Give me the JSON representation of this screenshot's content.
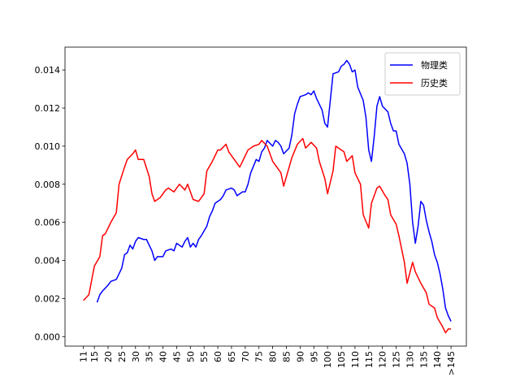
{
  "chart_data": {
    "type": "line",
    "xlim": [
      4.3,
      150.6
    ],
    "ylim": [
      -0.0005,
      0.0152
    ],
    "xticks": [
      11,
      15,
      20,
      25,
      30,
      35,
      40,
      45,
      50,
      55,
      60,
      65,
      70,
      75,
      80,
      85,
      90,
      95,
      100,
      105,
      110,
      115,
      120,
      125,
      130,
      135,
      140,
      {
        "value": 145,
        "label": ">145"
      }
    ],
    "yticks": [
      {
        "value": 0,
        "label": "0.000"
      },
      {
        "value": 0.002,
        "label": "0.002"
      },
      {
        "value": 0.004,
        "label": "0.004"
      },
      {
        "value": 0.006,
        "label": "0.006"
      },
      {
        "value": 0.008,
        "label": "0.008"
      },
      {
        "value": 0.01,
        "label": "0.010"
      },
      {
        "value": 0.012,
        "label": "0.012"
      },
      {
        "value": 0.014,
        "label": "0.014"
      }
    ],
    "grid": false,
    "legend": "upper right",
    "series": [
      {
        "name": "物理类",
        "color": "#0000ff",
        "x": [
          16,
          17,
          18,
          20,
          21,
          23,
          25,
          26,
          27,
          28,
          29,
          30,
          31,
          33,
          34,
          35,
          36,
          37,
          38,
          40,
          41,
          43,
          44,
          45,
          47,
          48,
          49,
          50,
          51,
          52,
          53,
          54,
          56,
          57,
          58,
          59,
          61,
          62,
          63,
          65,
          66,
          67,
          69,
          70,
          71,
          72,
          74,
          75,
          76,
          77,
          78,
          80,
          81,
          82,
          83,
          84,
          86,
          87,
          88,
          89,
          90,
          92,
          93,
          94,
          95,
          96,
          98,
          99,
          100,
          101,
          102,
          104,
          105,
          106,
          107,
          108,
          109,
          110,
          111,
          113,
          114,
          115,
          116,
          117,
          118,
          119,
          120,
          122,
          123,
          124,
          125,
          126,
          128,
          129,
          130,
          131,
          132,
          133,
          134,
          135,
          136,
          137,
          138,
          139,
          140,
          141,
          142,
          143,
          144,
          145
        ],
        "values": [
          0.0018,
          0.0022,
          0.0024,
          0.0027,
          0.0029,
          0.003,
          0.0036,
          0.0043,
          0.0044,
          0.0048,
          0.0046,
          0.005,
          0.0052,
          0.0051,
          0.0051,
          0.0048,
          0.0045,
          0.004,
          0.0042,
          0.0042,
          0.0045,
          0.0046,
          0.0045,
          0.0049,
          0.0047,
          0.005,
          0.0052,
          0.0047,
          0.0049,
          0.0047,
          0.0051,
          0.0053,
          0.0058,
          0.0063,
          0.0066,
          0.007,
          0.0072,
          0.0074,
          0.0077,
          0.0078,
          0.0077,
          0.0074,
          0.0076,
          0.0076,
          0.008,
          0.0086,
          0.0093,
          0.0092,
          0.0097,
          0.0099,
          0.0103,
          0.01,
          0.0103,
          0.0102,
          0.01,
          0.0096,
          0.0099,
          0.0106,
          0.0117,
          0.0122,
          0.0126,
          0.0127,
          0.0128,
          0.0127,
          0.0129,
          0.0125,
          0.0119,
          0.0112,
          0.011,
          0.0124,
          0.0138,
          0.0139,
          0.0142,
          0.0143,
          0.0145,
          0.0143,
          0.0139,
          0.014,
          0.0131,
          0.0124,
          0.0115,
          0.0098,
          0.0092,
          0.0105,
          0.0121,
          0.0126,
          0.0121,
          0.0118,
          0.0112,
          0.0108,
          0.0108,
          0.0101,
          0.0096,
          0.0091,
          0.008,
          0.006,
          0.0049,
          0.0058,
          0.0071,
          0.0069,
          0.0061,
          0.0055,
          0.005,
          0.0043,
          0.0039,
          0.0033,
          0.0025,
          0.0015,
          0.0011,
          0.0008
        ]
      },
      {
        "name": "历史类",
        "color": "#ff0000",
        "x": [
          11,
          13,
          15,
          17,
          18,
          19,
          21,
          23,
          24,
          26,
          27,
          29,
          30,
          31,
          33,
          35,
          36,
          37,
          39,
          41,
          42,
          44,
          46,
          48,
          49,
          51,
          53,
          55,
          56,
          58,
          60,
          61,
          63,
          64,
          66,
          68,
          69,
          71,
          73,
          75,
          76,
          78,
          80,
          81,
          83,
          84,
          86,
          87,
          89,
          91,
          92,
          94,
          96,
          97,
          99,
          100,
          102,
          103,
          104,
          106,
          107,
          109,
          110,
          112,
          113,
          115,
          116,
          118,
          119,
          121,
          122,
          123,
          125,
          126,
          128,
          129,
          131,
          132,
          134,
          136,
          137,
          139,
          140,
          142,
          143,
          144,
          145
        ],
        "values": [
          0.0019,
          0.0022,
          0.0037,
          0.0042,
          0.0053,
          0.0054,
          0.006,
          0.0065,
          0.008,
          0.0089,
          0.0093,
          0.0096,
          0.0098,
          0.0093,
          0.0093,
          0.0084,
          0.0075,
          0.0071,
          0.0073,
          0.0077,
          0.0078,
          0.0076,
          0.008,
          0.0077,
          0.008,
          0.0072,
          0.0071,
          0.0075,
          0.0087,
          0.0092,
          0.0098,
          0.0098,
          0.0101,
          0.0097,
          0.0093,
          0.0089,
          0.0092,
          0.0098,
          0.01,
          0.0101,
          0.0103,
          0.01,
          0.0092,
          0.009,
          0.0086,
          0.0079,
          0.0089,
          0.0094,
          0.0101,
          0.0104,
          0.0099,
          0.0102,
          0.0099,
          0.0092,
          0.0083,
          0.0075,
          0.0087,
          0.01,
          0.0099,
          0.0097,
          0.0092,
          0.0095,
          0.0086,
          0.008,
          0.0064,
          0.0057,
          0.007,
          0.0078,
          0.0079,
          0.0074,
          0.0072,
          0.0064,
          0.0059,
          0.0053,
          0.0039,
          0.0028,
          0.0039,
          0.0034,
          0.0028,
          0.0023,
          0.0017,
          0.0015,
          0.001,
          0.0005,
          0.0002,
          0.0004,
          0.0004
        ]
      }
    ]
  }
}
